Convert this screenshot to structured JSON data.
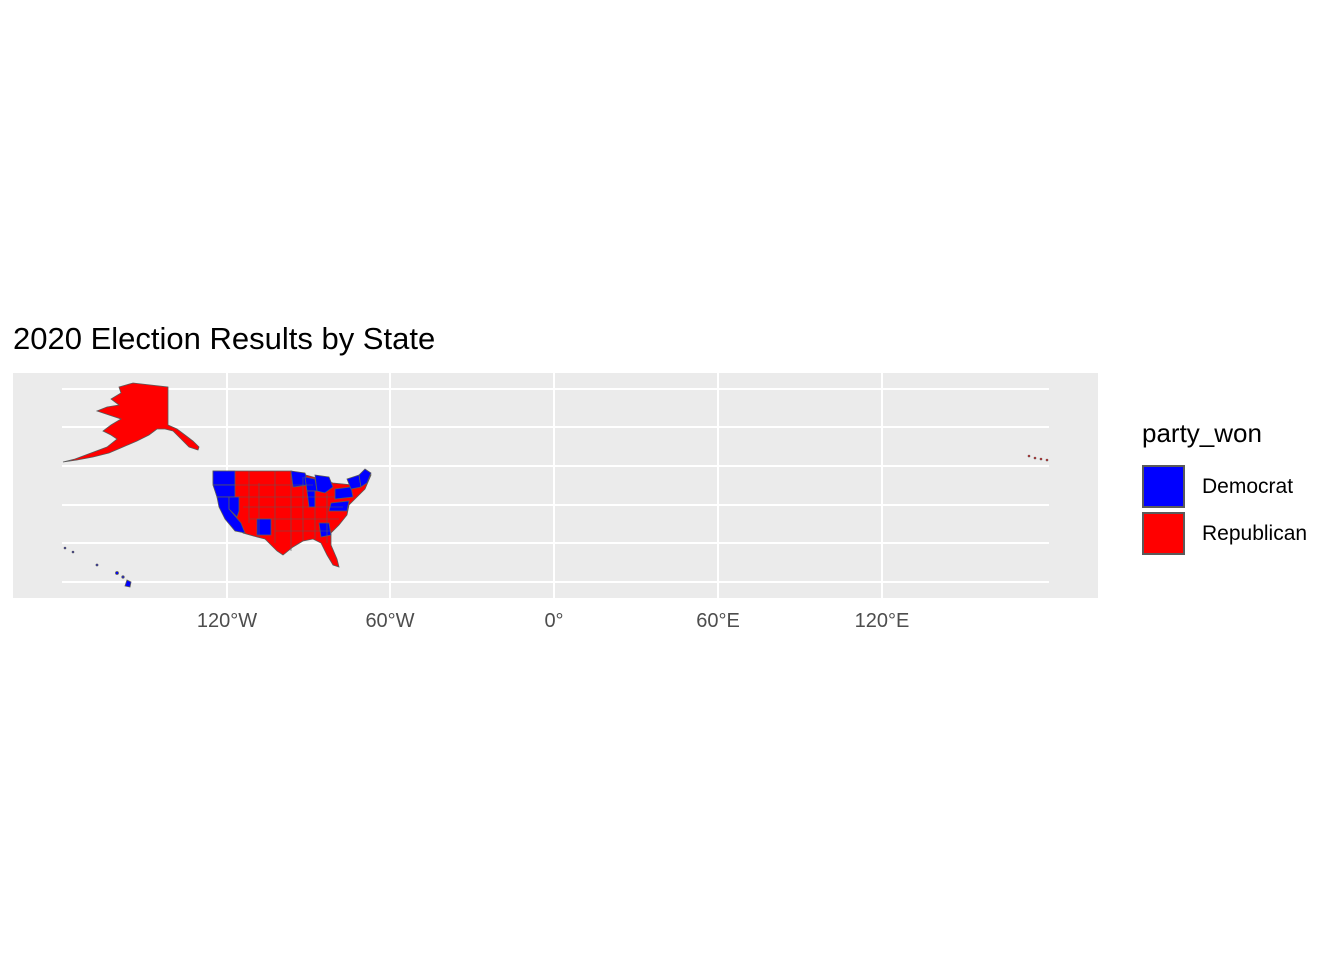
{
  "plot": {
    "title": "2020 Election Results by State"
  },
  "axis": {
    "x_ticks": [
      "120°W",
      "60°W",
      "0°",
      "60°E",
      "120°E"
    ]
  },
  "legend": {
    "title": "party_won",
    "items": [
      {
        "label": "Democrat",
        "color": "#0000ff"
      },
      {
        "label": "Republican",
        "color": "#ff0000"
      }
    ]
  },
  "colors": {
    "democrat": "#0000ff",
    "republican": "#ff0000",
    "panel_background": "#ebebeb",
    "state_border": "#5a5a5a"
  }
}
